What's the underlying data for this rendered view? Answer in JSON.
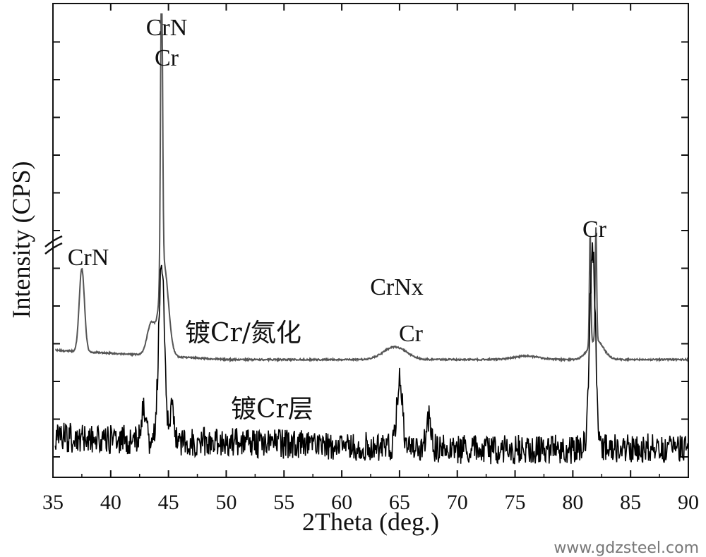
{
  "chart_data": {
    "type": "line",
    "xlabel": "2Theta (deg.)",
    "ylabel": "Intensity (CPS)",
    "xlim": [
      35,
      90
    ],
    "x_ticks": [
      35,
      40,
      45,
      50,
      55,
      60,
      65,
      70,
      75,
      80,
      85,
      90
    ],
    "y_ticks_shown": false,
    "axis_break": true,
    "series": [
      {
        "name": "镀Cr/氮化",
        "color": "#555555",
        "peaks": [
          {
            "x": 37.5,
            "label": "CrN"
          },
          {
            "x": 44.4,
            "label_lines": [
              "CrN",
              "Cr"
            ]
          },
          {
            "x": 64.6,
            "label_lines": [
              "CrNx",
              "Cr"
            ]
          },
          {
            "x": 81.9,
            "label": "Cr"
          }
        ]
      },
      {
        "name": "镀Cr层",
        "color": "#000000",
        "peaks": [
          {
            "x": 44.5
          },
          {
            "x": 65.0
          },
          {
            "x": 67.5
          },
          {
            "x": 81.7
          }
        ]
      }
    ],
    "watermark": "www.gdzsteel.com"
  }
}
